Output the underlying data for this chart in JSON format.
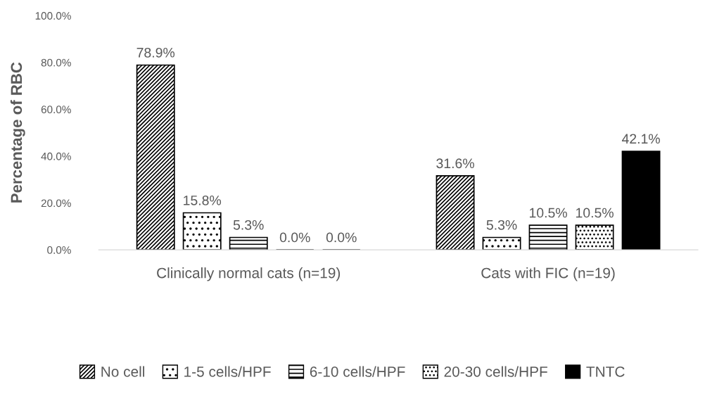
{
  "chart_data": {
    "type": "bar",
    "ylabel": "Percentage of RBC",
    "categories": [
      "Clinically normal cats (n=19)",
      "Cats with FIC (n=19)"
    ],
    "series": [
      {
        "name": "No cell",
        "color": "#000000",
        "values": [
          78.9,
          31.6
        ],
        "value_labels": [
          "78.9%",
          "31.6%"
        ]
      },
      {
        "name": "1-5 cells/HPF",
        "color": "#000000",
        "values": [
          15.8,
          5.3
        ],
        "value_labels": [
          "15.8%",
          "5.3%"
        ]
      },
      {
        "name": "6-10 cells/HPF",
        "color": "#000000",
        "values": [
          5.3,
          10.5
        ],
        "value_labels": [
          "5.3%",
          "10.5%"
        ]
      },
      {
        "name": "20-30 cells/HPF",
        "color": "#000000",
        "values": [
          0,
          10.5
        ],
        "value_labels": [
          "0.0%",
          "10.5%"
        ]
      },
      {
        "name": "TNTC",
        "color": "#000000",
        "values": [
          0,
          42.1
        ],
        "value_labels": [
          "0.0%",
          "42.1%"
        ]
      }
    ],
    "ylim": [
      0,
      100
    ],
    "yticks": [
      {
        "value": 0,
        "label": "0.0%"
      },
      {
        "value": 20,
        "label": "20.0%"
      },
      {
        "value": 40,
        "label": "40.0%"
      },
      {
        "value": 60,
        "label": "60.0%"
      },
      {
        "value": 80,
        "label": "80.0%"
      },
      {
        "value": 100,
        "label": "100.0%"
      }
    ],
    "grid": false,
    "legend": "bottom"
  }
}
